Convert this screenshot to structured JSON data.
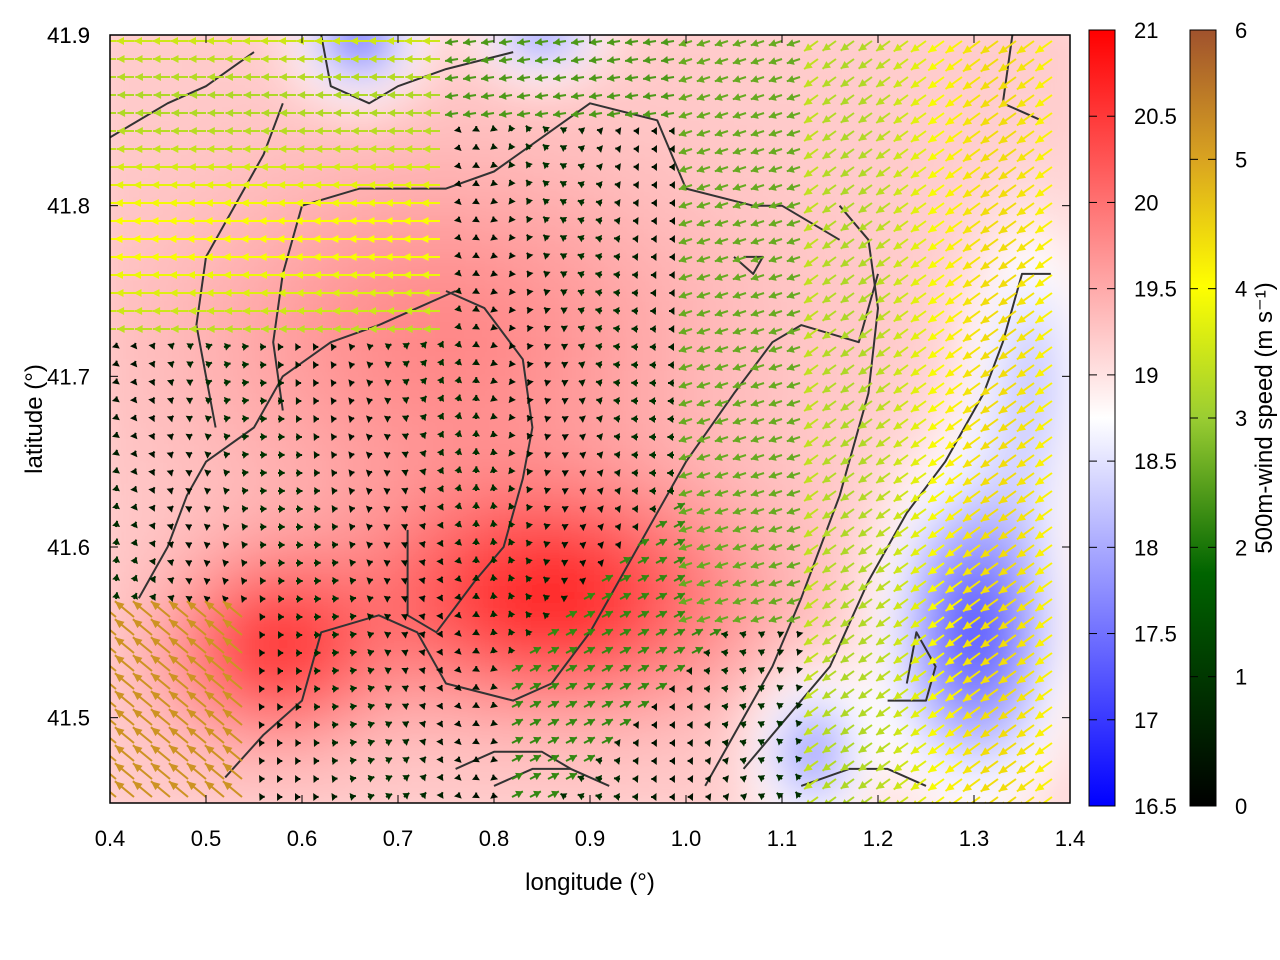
{
  "chart_data": {
    "type": "heatmap",
    "xlabel": "longitude (°)",
    "ylabel": "latitude (°)",
    "xlim": [
      0.4,
      1.4
    ],
    "ylim": [
      41.45,
      41.9
    ],
    "x_ticks": [
      "0.4",
      "0.5",
      "0.6",
      "0.7",
      "0.8",
      "0.9",
      "1.0",
      "1.1",
      "1.2",
      "1.3",
      "1.4"
    ],
    "y_ticks": [
      "41.5",
      "41.6",
      "41.7",
      "41.8",
      "41.9"
    ],
    "temperature_colorbar": {
      "range": [
        16.5,
        21
      ],
      "ticks": [
        "21",
        "20.5",
        "20",
        "19.5",
        "19",
        "18.5",
        "18",
        "17.5",
        "17",
        "16.5"
      ],
      "colors": [
        "#0000ff",
        "#ffffff",
        "#ff0000"
      ]
    },
    "wind_colorbar": {
      "label": "500m-wind speed (m s⁻¹)",
      "range": [
        0,
        6
      ],
      "ticks": [
        "6",
        "5",
        "4",
        "3",
        "2",
        "1",
        "0"
      ],
      "colors": [
        "#000000",
        "#006400",
        "#9acd32",
        "#ffff00",
        "#daa520",
        "#a0522d"
      ]
    },
    "vector_field": {
      "wind_speed_range": [
        0,
        6
      ]
    },
    "contour_color": "#333333"
  }
}
